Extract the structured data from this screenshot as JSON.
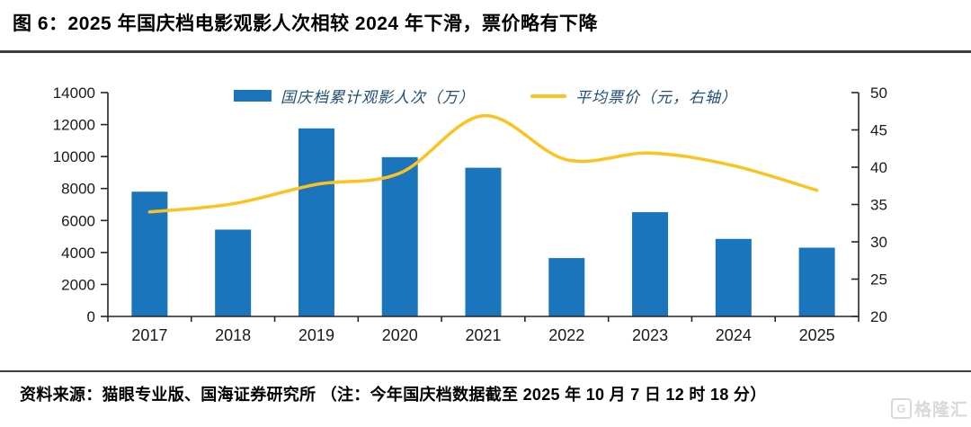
{
  "title": "图 6：2025 年国庆档电影观影人次相较 2024 年下滑，票价略有下降",
  "source_note": "资料来源：猫眼专业版、国海证券研究所 （注：今年国庆档数据截至 2025 年 10 月 7 日 12 时 18 分）",
  "watermark": {
    "logo_letter": "G",
    "text": "格隆汇"
  },
  "colors": {
    "bar": "#1B75BC",
    "line": "#FDC21E",
    "legend_text": "#1F4E79",
    "axis_text": "#1A1A1A",
    "axis_line": "#262626",
    "rule": "#3D3D3D",
    "watermark": "#D9D9D9"
  },
  "chart_data": {
    "type": "combo-bar-line",
    "categories": [
      "2017",
      "2018",
      "2019",
      "2020",
      "2021",
      "2022",
      "2023",
      "2024",
      "2025"
    ],
    "series": [
      {
        "name": "国庆档累计观影人次（万）",
        "type": "bar",
        "axis": "left",
        "values": [
          7800,
          5430,
          11760,
          9960,
          9300,
          3650,
          6520,
          4850,
          4300
        ]
      },
      {
        "name": "平均票价（元，右轴）",
        "type": "line",
        "axis": "right",
        "values": [
          34.0,
          35.1,
          37.7,
          39.2,
          46.9,
          41.0,
          41.9,
          40.2,
          36.9
        ]
      }
    ],
    "left_axis": {
      "min": 0,
      "max": 14000,
      "step": 2000
    },
    "right_axis": {
      "min": 20,
      "max": 50,
      "step": 5
    },
    "grid": false,
    "legend_position": "top-center"
  }
}
